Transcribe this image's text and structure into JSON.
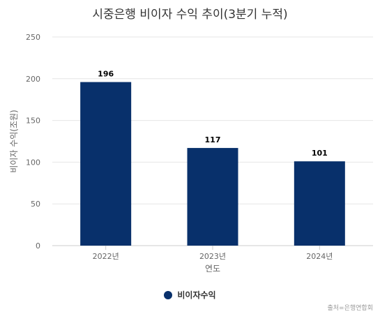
{
  "chart_data": {
    "type": "bar",
    "title": "시중은행 비이자 수익 추이(3분기 누적)",
    "xlabel": "연도",
    "ylabel": "비이자 수익(조원)",
    "categories": [
      "2022년",
      "2023년",
      "2024년"
    ],
    "series": [
      {
        "name": "비이자수익",
        "values": [
          196,
          117,
          101
        ]
      }
    ],
    "ylim": [
      0,
      250
    ],
    "yticks": [
      0,
      50,
      100,
      150,
      200,
      250
    ],
    "grid": true,
    "legend": "bottom",
    "color": "#08306b"
  },
  "credit": "출처=은행연합회"
}
